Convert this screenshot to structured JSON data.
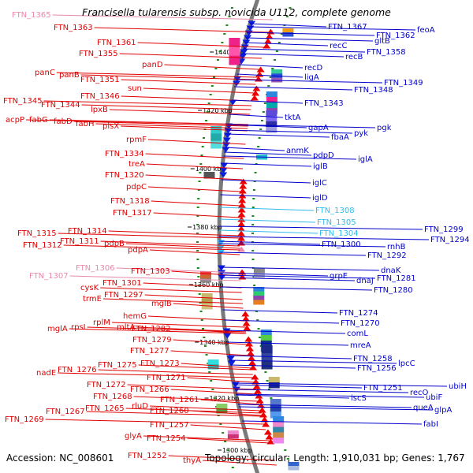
{
  "title": "Francisella tularensis subsp. novicida U112, complete genome",
  "footer": {
    "accession": "Accession: NC_008601",
    "topology": "Topology: circular; Length: 1,910,031 bp; Genes: 1,767"
  },
  "colors": {
    "left_label": "#e00000",
    "right_label": "#0000cc",
    "light_left": "#e88aa8",
    "light_right": "#33bbee",
    "backbone": "#7a7a7a",
    "tick": "#1a8a1a"
  },
  "ticks": [
    "1440 kbp",
    "1420 kbp",
    "1400 kbp",
    "1380 kbp",
    "1360 kbp",
    "1340 kbp",
    "1320 kbp",
    "1300 kbp"
  ],
  "left_labels": [
    "FTN_1365",
    "FTN_1363",
    "FTN_1361",
    "FTN_1355",
    "panD",
    "panC",
    "panB",
    "FTN_1351",
    "sun",
    "FTN_1346",
    "FTN_1345",
    "FTN_1344",
    "lpxB",
    "acpP",
    "fabG",
    "fabD",
    "fabH",
    "plsX",
    "rpmF",
    "FTN_1334",
    "treA",
    "FTN_1320",
    "pdpC",
    "FTN_1318",
    "FTN_1317",
    "FTN_1315",
    "FTN_1314",
    "FTN_1312",
    "FTN_1311",
    "pdpB",
    "pdpA",
    "FTN_1307",
    "FTN_1306",
    "FTN_1303",
    "FTN_1301",
    "cysK",
    "FTN_1297",
    "trmE",
    "mglB",
    "hemG",
    "rpsI",
    "rplM",
    "mltA",
    "mglA",
    "FTN_1282",
    "FTN_1279",
    "FTN_1277",
    "nadE",
    "FTN_1276",
    "FTN_1275",
    "FTN_1273",
    "FTN_1271",
    "FTN_1272",
    "FTN_1268",
    "FTN_1266",
    "rluD",
    "FTN_1261",
    "FTN_1265",
    "FTN_1267",
    "FTN_1260",
    "FTN_1269",
    "FTN_1257",
    "glyA",
    "FTN_1254",
    "FTN_1252",
    "thyA"
  ],
  "right_labels": [
    "FTN_1367",
    "feoA",
    "gltB",
    "FTN_1362",
    "recC",
    "recB",
    "FTN_1358",
    "recD",
    "ligA",
    "FTN_1349",
    "FTN_1348",
    "FTN_1343",
    "tktA",
    "gapA",
    "pgk",
    "pyk",
    "fbaA",
    "anmK",
    "pdpD",
    "iglA",
    "iglB",
    "iglC",
    "iglD",
    "FTN_1308",
    "FTN_1305",
    "FTN_1304",
    "FTN_1300",
    "FTN_1299",
    "FTN_1294",
    "rnhB",
    "FTN_1292",
    "dnaK",
    "grpE",
    "dnaJ",
    "FTN_1281",
    "FTN_1280",
    "FTN_1274",
    "FTN_1270",
    "comL",
    "mreA",
    "FTN_1258",
    "FTN_1256",
    "lpcC",
    "FTN_1251",
    "iscS",
    "recO",
    "ubiH",
    "ubiF",
    "queA",
    "glpA",
    "fabI"
  ]
}
